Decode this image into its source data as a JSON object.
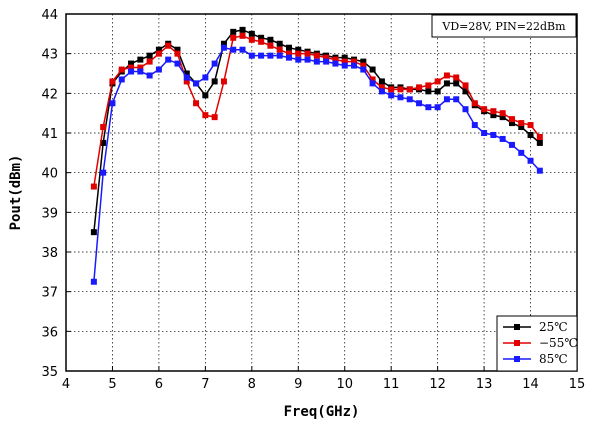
{
  "chart_data": {
    "type": "line",
    "xlabel": "Freq(GHz)",
    "ylabel": "Pout(dBm)",
    "xlim": [
      4,
      15
    ],
    "ylim": [
      35,
      44
    ],
    "xticks": [
      4,
      5,
      6,
      7,
      8,
      9,
      10,
      11,
      12,
      13,
      14,
      15
    ],
    "yticks": [
      35,
      36,
      37,
      38,
      39,
      40,
      41,
      42,
      43,
      44
    ],
    "grid": true,
    "annotation": "VD=28V, PIN=22dBm",
    "legend_position": "bottom-right",
    "series": [
      {
        "name": "25℃",
        "color": "#000000",
        "x": [
          4.6,
          4.8,
          5.0,
          5.2,
          5.4,
          5.6,
          5.8,
          6.0,
          6.2,
          6.4,
          6.6,
          6.8,
          7.0,
          7.2,
          7.4,
          7.6,
          7.8,
          8.0,
          8.2,
          8.4,
          8.6,
          8.8,
          9.0,
          9.2,
          9.4,
          9.6,
          9.8,
          10.0,
          10.2,
          10.4,
          10.6,
          10.8,
          11.0,
          11.2,
          11.4,
          11.6,
          11.8,
          12.0,
          12.2,
          12.4,
          12.6,
          12.8,
          13.0,
          13.2,
          13.4,
          13.6,
          13.8,
          14.0,
          14.2
        ],
        "y": [
          38.5,
          40.75,
          42.25,
          42.55,
          42.75,
          42.85,
          42.95,
          43.1,
          43.25,
          43.1,
          42.5,
          42.25,
          41.95,
          42.3,
          43.25,
          43.55,
          43.6,
          43.5,
          43.4,
          43.35,
          43.25,
          43.15,
          43.1,
          43.05,
          43.0,
          42.95,
          42.9,
          42.9,
          42.85,
          42.8,
          42.6,
          42.3,
          42.15,
          42.15,
          42.1,
          42.1,
          42.05,
          42.05,
          42.25,
          42.25,
          42.05,
          41.7,
          41.55,
          41.45,
          41.4,
          41.25,
          41.15,
          40.95,
          40.75
        ]
      },
      {
        "name": "−55℃",
        "color": "#e00000",
        "x": [
          4.6,
          4.8,
          5.0,
          5.2,
          5.4,
          5.6,
          5.8,
          6.0,
          6.2,
          6.4,
          6.6,
          6.8,
          7.0,
          7.2,
          7.4,
          7.6,
          7.8,
          8.0,
          8.2,
          8.4,
          8.6,
          8.8,
          9.0,
          9.2,
          9.4,
          9.6,
          9.8,
          10.0,
          10.2,
          10.4,
          10.6,
          10.8,
          11.0,
          11.2,
          11.4,
          11.6,
          11.8,
          12.0,
          12.2,
          12.4,
          12.6,
          12.8,
          13.0,
          13.2,
          13.4,
          13.6,
          13.8,
          14.0,
          14.2
        ],
        "y": [
          39.65,
          41.15,
          42.3,
          42.6,
          42.65,
          42.65,
          42.8,
          43.0,
          43.2,
          43.0,
          42.3,
          41.75,
          41.45,
          41.4,
          42.3,
          43.4,
          43.45,
          43.35,
          43.3,
          43.2,
          43.1,
          43.0,
          43.0,
          43.0,
          42.95,
          42.9,
          42.85,
          42.8,
          42.8,
          42.7,
          42.35,
          42.15,
          42.1,
          42.1,
          42.1,
          42.15,
          42.2,
          42.3,
          42.45,
          42.4,
          42.2,
          41.75,
          41.6,
          41.55,
          41.5,
          41.35,
          41.25,
          41.2,
          40.9
        ]
      },
      {
        "name": "85℃",
        "color": "#1a1aff",
        "x": [
          4.6,
          4.8,
          5.0,
          5.2,
          5.4,
          5.6,
          5.8,
          6.0,
          6.2,
          6.4,
          6.6,
          6.8,
          7.0,
          7.2,
          7.4,
          7.6,
          7.8,
          8.0,
          8.2,
          8.4,
          8.6,
          8.8,
          9.0,
          9.2,
          9.4,
          9.6,
          9.8,
          10.0,
          10.2,
          10.4,
          10.6,
          10.8,
          11.0,
          11.2,
          11.4,
          11.6,
          11.8,
          12.0,
          12.2,
          12.4,
          12.6,
          12.8,
          13.0,
          13.2,
          13.4,
          13.6,
          13.8,
          14.0,
          14.2
        ],
        "y": [
          37.25,
          40.0,
          41.75,
          42.35,
          42.55,
          42.55,
          42.45,
          42.6,
          42.85,
          42.75,
          42.4,
          42.25,
          42.4,
          42.75,
          43.15,
          43.1,
          43.1,
          42.95,
          42.95,
          42.95,
          42.95,
          42.9,
          42.85,
          42.85,
          42.8,
          42.8,
          42.75,
          42.7,
          42.7,
          42.6,
          42.25,
          42.05,
          41.95,
          41.9,
          41.85,
          41.75,
          41.65,
          41.65,
          41.85,
          41.85,
          41.6,
          41.2,
          41.0,
          40.95,
          40.85,
          40.7,
          40.5,
          40.3,
          40.05
        ]
      }
    ]
  }
}
